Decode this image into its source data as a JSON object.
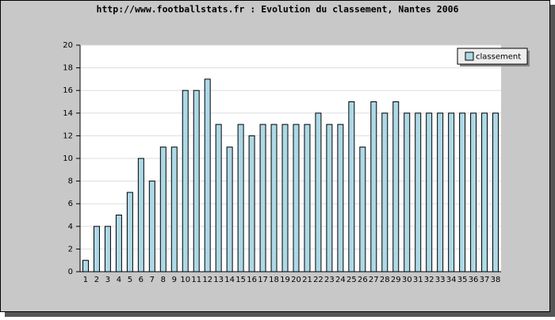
{
  "chart_data": {
    "type": "bar",
    "title": "http://www.footballstats.fr : Evolution du classement, Nantes 2006",
    "categories": [
      1,
      2,
      3,
      4,
      5,
      6,
      7,
      8,
      9,
      10,
      11,
      12,
      13,
      14,
      15,
      16,
      17,
      18,
      19,
      20,
      21,
      22,
      23,
      24,
      25,
      26,
      27,
      28,
      29,
      30,
      31,
      32,
      33,
      34,
      35,
      36,
      37,
      38
    ],
    "series": [
      {
        "name": "classement",
        "color": "#add8e6",
        "values": [
          1,
          4,
          4,
          5,
          7,
          10,
          8,
          11,
          11,
          16,
          16,
          17,
          13,
          11,
          13,
          12,
          13,
          13,
          13,
          13,
          13,
          14,
          13,
          13,
          15,
          11,
          15,
          14,
          15,
          14,
          14,
          14,
          14,
          14,
          14,
          14,
          14,
          14
        ]
      }
    ],
    "ylim": [
      0,
      20
    ],
    "yticks": [
      0,
      2,
      4,
      6,
      8,
      10,
      12,
      14,
      16,
      18,
      20
    ],
    "grid": true,
    "legend": "top-right"
  }
}
